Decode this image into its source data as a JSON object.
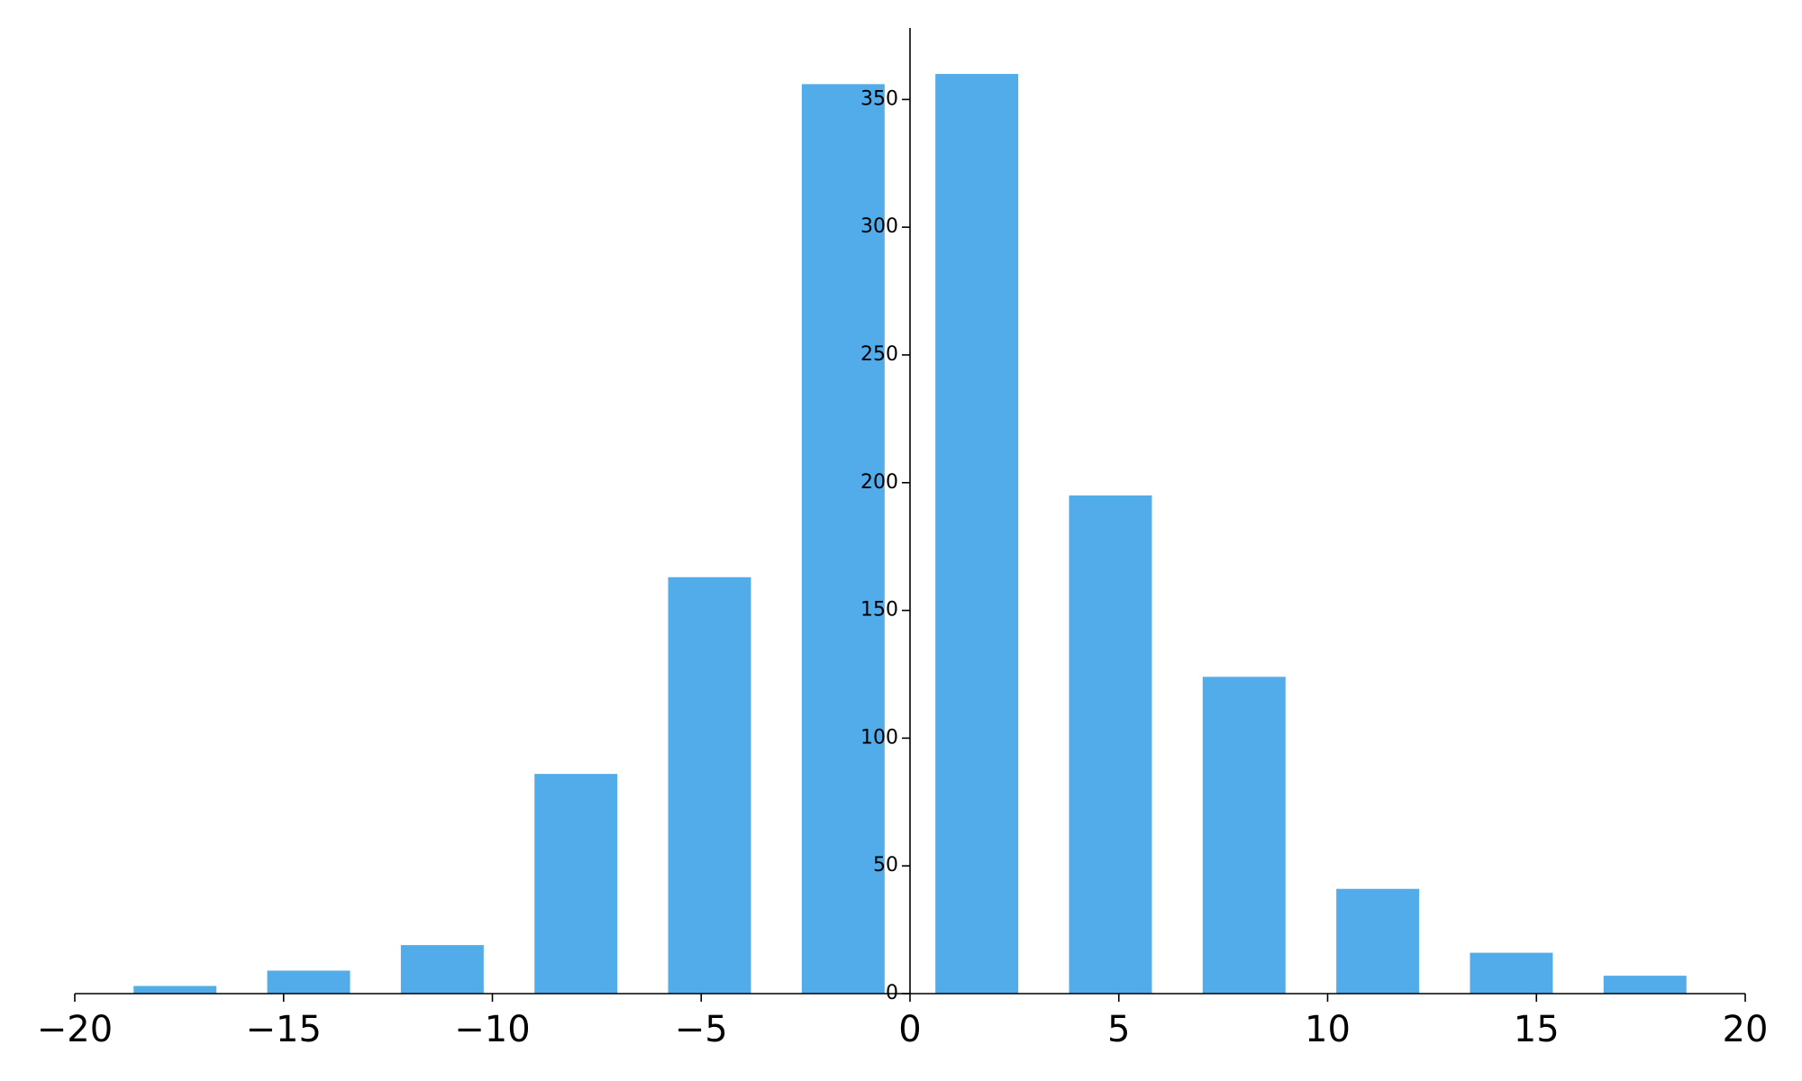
{
  "chart_data": {
    "type": "histogram",
    "color": "#52ace9",
    "bins": [
      -19.2,
      -16,
      -12.8,
      -9.6,
      -6.4,
      -3.2,
      0,
      3.2,
      6.4,
      9.6,
      12.8,
      16,
      19.2
    ],
    "values": [
      3,
      9,
      19,
      86,
      163,
      356,
      360,
      195,
      124,
      41,
      16,
      7
    ],
    "xlim": [
      -20,
      20
    ],
    "xticks": [
      {
        "value": -20,
        "label": "−20"
      },
      {
        "value": -15,
        "label": "−15"
      },
      {
        "value": -10,
        "label": "−10"
      },
      {
        "value": -5,
        "label": "−5"
      },
      0,
      5,
      10,
      15,
      20
    ],
    "ylim": [
      0,
      378
    ],
    "yticks": [
      0,
      50,
      100,
      150,
      200,
      250,
      300,
      350
    ]
  }
}
